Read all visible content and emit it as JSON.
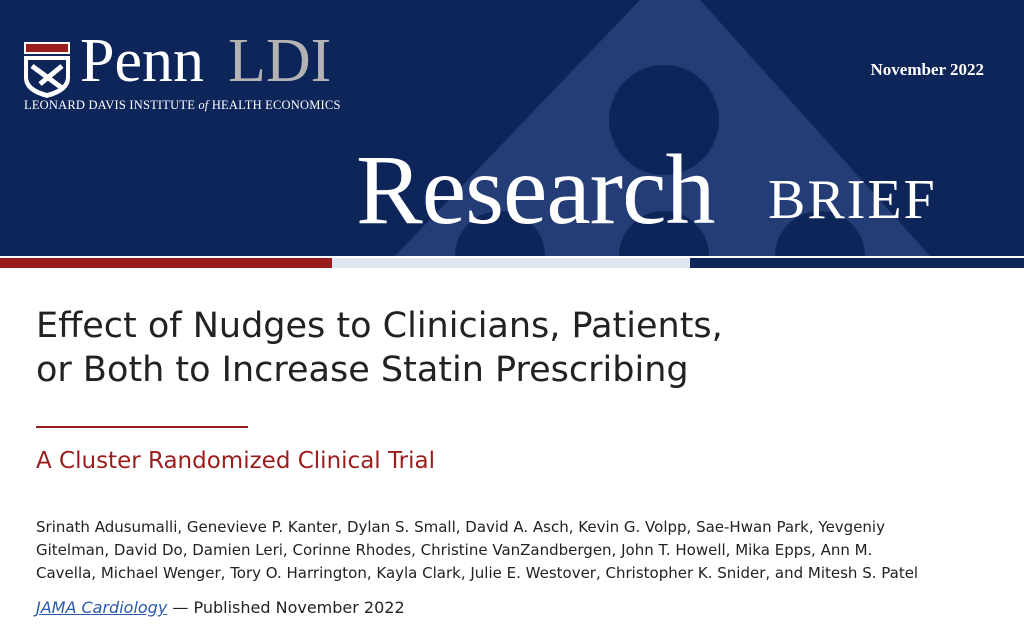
{
  "header": {
    "logo": {
      "penn": "Penn",
      "ldi": "LDI",
      "institute_parts": [
        "LEONARD DAVIS INSTITUTE",
        "of",
        "HEALTH ECONOMICS"
      ]
    },
    "date": "November 2022",
    "banner": {
      "research": "Research",
      "brief": "BRIEF"
    }
  },
  "article": {
    "title_lines": [
      "Effect of Nudges to Clinicians, Patients,",
      "or Both to Increase Statin Prescribing"
    ],
    "subtitle": "A Cluster Randomized Clinical Trial",
    "author_lines": [
      "Srinath Adusumalli, Genevieve P. Kanter, Dylan S. Small, David A. Asch, Kevin G. Volpp, Sae-Hwan Park,  Yevgeniy",
      "Gitelman, David Do, Damien Leri, Corinne Rhodes, Christine VanZandbergen, John T. Howell, Mika Epps, Ann M.",
      "Cavella, Michael Wenger, Tory O. Harrington, Kayla Clark, Julie E. Westover, Christopher K. Snider, and Mitesh S. Patel"
    ],
    "citation": {
      "journal": "JAMA Cardiology",
      "published": "— Published November 2022"
    }
  }
}
